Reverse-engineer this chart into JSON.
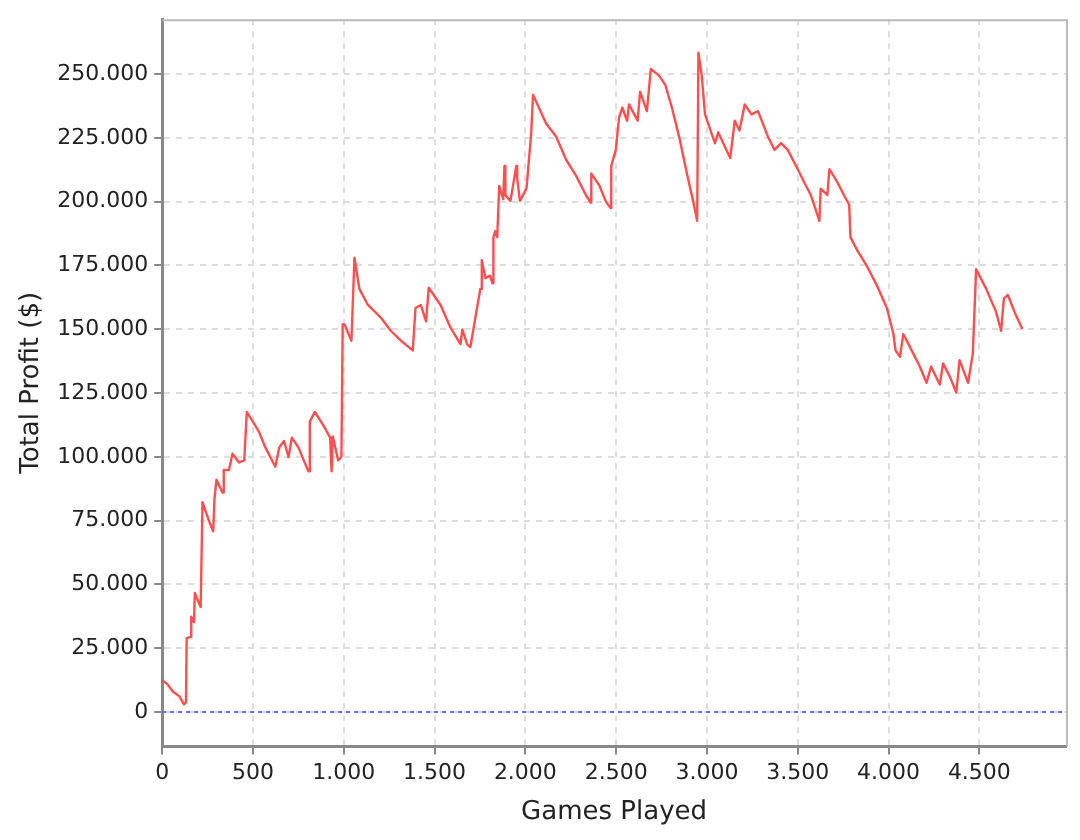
{
  "chart_data": {
    "type": "line",
    "xlabel": "Games Played",
    "ylabel": "Total Profit ($)",
    "xlim": [
      0,
      4977
    ],
    "ylim": [
      -13500,
      271500
    ],
    "xticks": [
      0,
      500,
      {
        "value": 1000,
        "label": "1.000"
      },
      {
        "value": 1500,
        "label": "1.500"
      },
      {
        "value": 2000,
        "label": "2.000"
      },
      {
        "value": 2500,
        "label": "2.500"
      },
      {
        "value": 3000,
        "label": "3.000"
      },
      {
        "value": 3500,
        "label": "3.500"
      },
      {
        "value": 4000,
        "label": "4.000"
      },
      {
        "value": 4500,
        "label": "4.500"
      }
    ],
    "yticks": [
      0,
      {
        "value": 25000,
        "label": "25.000"
      },
      {
        "value": 50000,
        "label": "50.000"
      },
      {
        "value": 75000,
        "label": "75.000"
      },
      {
        "value": 100000,
        "label": "100.000"
      },
      {
        "value": 125000,
        "label": "125.000"
      },
      {
        "value": 150000,
        "label": "150.000"
      },
      {
        "value": 175000,
        "label": "175.000"
      },
      {
        "value": 200000,
        "label": "200.000"
      },
      {
        "value": 225000,
        "label": "225.000"
      },
      {
        "value": 250000,
        "label": "250.000"
      }
    ],
    "grid": true,
    "legend": false,
    "marker": "none",
    "line_style": "solid",
    "ref_lines": [
      {
        "axis": "y",
        "value": 0,
        "color": "#6b6bff",
        "line_style": "dotted"
      }
    ],
    "series": [
      {
        "color": "#ff4f4f",
        "x": [
          0,
          26,
          59,
          95,
          120,
          131,
          135,
          157,
          160,
          175,
          180,
          212,
          222,
          259,
          281,
          288,
          299,
          332,
          339,
          368,
          387,
          423,
          452,
          466,
          532,
          568,
          623,
          645,
          671,
          696,
          714,
          750,
          805,
          813,
          841,
          896,
          925,
          933,
          940,
          969,
          987,
          994,
          1005,
          1042,
          1059,
          1086,
          1133,
          1206,
          1260,
          1315,
          1380,
          1395,
          1424,
          1453,
          1468,
          1533,
          1588,
          1643,
          1653,
          1679,
          1697,
          1752,
          1760,
          1780,
          1805,
          1819,
          1824,
          1834,
          1845,
          1856,
          1878,
          1885,
          1890,
          1918,
          1950,
          1955,
          1970,
          2006,
          2032,
          2042,
          2115,
          2169,
          2224,
          2279,
          2333,
          2359,
          2363,
          2407,
          2443,
          2469,
          2473,
          2498,
          2516,
          2534,
          2560,
          2571,
          2618,
          2632,
          2669,
          2691,
          2735,
          2771,
          2807,
          2851,
          2888,
          2924,
          2946,
          2953,
          2971,
          2989,
          3044,
          3062,
          3098,
          3128,
          3153,
          3179,
          3208,
          3245,
          3281,
          3336,
          3372,
          3408,
          3445,
          3500,
          3535,
          3572,
          3619,
          3626,
          3663,
          3674,
          3718,
          3754,
          3783,
          3790,
          3827,
          3881,
          3936,
          3991,
          4027,
          4038,
          4063,
          4081,
          4118,
          4172,
          4209,
          4234,
          4282,
          4300,
          4336,
          4373,
          4391,
          4438,
          4464,
          4482,
          4537,
          4591,
          4620,
          4635,
          4657,
          4700,
          4737
        ],
        "values": [
          12400,
          11100,
          8000,
          6100,
          3000,
          3700,
          28900,
          29400,
          37300,
          35200,
          46600,
          41100,
          82200,
          74600,
          70800,
          83400,
          91000,
          86000,
          94800,
          94800,
          101200,
          97800,
          98600,
          117600,
          110000,
          103700,
          96100,
          103700,
          106200,
          99900,
          107500,
          103700,
          94300,
          113800,
          117600,
          111300,
          107500,
          94300,
          108000,
          98600,
          100000,
          152000,
          151800,
          145500,
          178000,
          165800,
          159500,
          154400,
          149300,
          145500,
          141700,
          158300,
          159500,
          153100,
          166300,
          159500,
          150600,
          144200,
          149900,
          144200,
          143000,
          165800,
          177000,
          170000,
          171000,
          168000,
          186100,
          188400,
          186100,
          206100,
          201000,
          214000,
          202500,
          200300,
          214000,
          209000,
          200300,
          205100,
          226700,
          241900,
          230500,
          225500,
          216500,
          210200,
          202600,
          199600,
          211000,
          206400,
          200100,
          197500,
          214000,
          220300,
          233000,
          236800,
          231700,
          238100,
          231700,
          243100,
          235500,
          252000,
          249500,
          245700,
          236800,
          224100,
          211500,
          200100,
          192500,
          258400,
          249500,
          234200,
          222900,
          227200,
          221600,
          217100,
          231700,
          227900,
          238100,
          234200,
          235500,
          225400,
          220300,
          222900,
          220300,
          212700,
          207600,
          202600,
          192500,
          205100,
          202600,
          212700,
          207600,
          202600,
          198800,
          186100,
          181000,
          174700,
          167100,
          158200,
          148100,
          141700,
          139200,
          148100,
          143000,
          135400,
          129000,
          135400,
          128300,
          136600,
          131600,
          125200,
          137900,
          129000,
          140500,
          173500,
          165900,
          157000,
          149400,
          162100,
          163400,
          155700,
          150100
        ]
      }
    ]
  }
}
